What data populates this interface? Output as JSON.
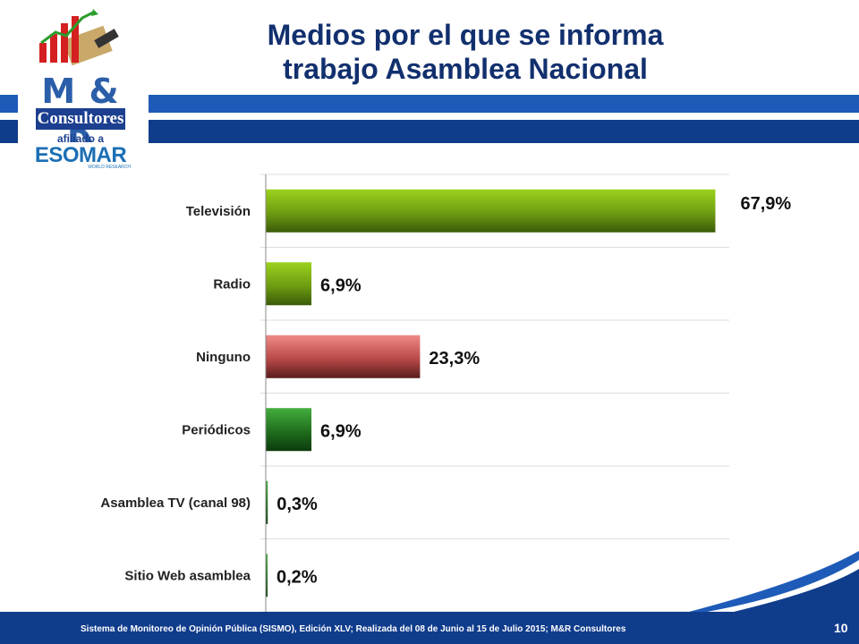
{
  "header": {
    "title_line1": "Medios por el que se informa",
    "title_line2": "trabajo Asamblea Nacional"
  },
  "logo": {
    "brand": "M & R",
    "name": "Consultores",
    "affiliation": "afiliado a",
    "partner": "ESOMAR",
    "partner_sub": "WORLD RESEARCH"
  },
  "footer": {
    "text": "Sistema de Monitoreo de Opinión Pública (SISMO), Edición XLV; Realizada del 08 de Junio al 15 de Julio 2015; M&R Consultores",
    "page_number": "10"
  },
  "colors": {
    "green_light": "#8ec21a",
    "green_dark": "#3a5a08",
    "red_light": "#e87a78",
    "red_dark": "#5a1c1c",
    "darkgreen_light": "#3fa33a",
    "darkgreen_dark": "#0d3a0d",
    "navy": "#103c8c",
    "blue": "#1e5bb8"
  },
  "chart_data": {
    "type": "bar",
    "orientation": "horizontal",
    "categories": [
      "Televisión",
      "Radio",
      "Ninguno",
      "Periódicos",
      "Asamblea TV (canal 98)",
      "Sitio Web asamblea"
    ],
    "values": [
      67.9,
      6.9,
      23.3,
      6.9,
      0.3,
      0.2
    ],
    "value_labels": [
      "67,9%",
      "6,9%",
      "23,3%",
      "6,9%",
      "0,3%",
      "0,2%"
    ],
    "bar_colors": [
      "green",
      "green",
      "red",
      "darkgreen",
      "darkgreen",
      "darkgreen"
    ],
    "xlim": [
      0,
      70
    ],
    "grid": true
  }
}
